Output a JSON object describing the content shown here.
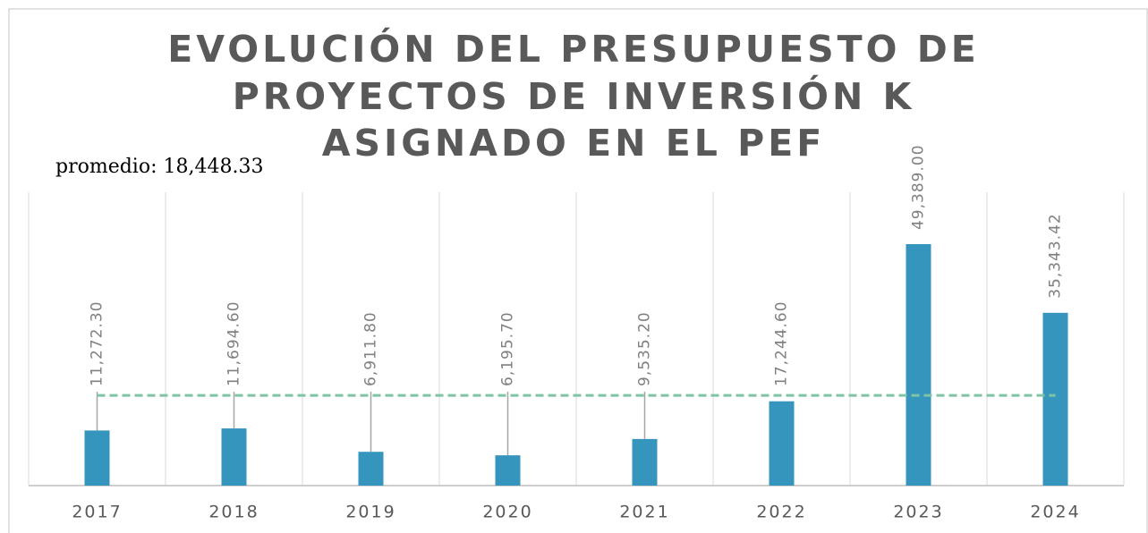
{
  "chart_data": {
    "type": "bar",
    "title": [
      "EVOLUCIÓN DEL PRESUPUESTO DE",
      "PROYECTOS DE INVERSIÓN K",
      "ASIGNADO EN EL PEF"
    ],
    "categories": [
      "2017",
      "2018",
      "2019",
      "2020",
      "2021",
      "2022",
      "2023",
      "2024"
    ],
    "values": [
      11272.3,
      11694.6,
      6911.8,
      6195.7,
      9535.2,
      17244.6,
      49389,
      35343.42
    ],
    "value_labels": [
      "11,272.30",
      "11,694.60",
      "6,911.80",
      "6,195.70",
      "9,535.20",
      "17,244.60",
      "49,389.00",
      "35,343.42"
    ],
    "color": "#3595bd",
    "ylim": [
      0,
      60000
    ],
    "average": {
      "value": 18448.33,
      "label": "promedio: 18,448.33",
      "color": "#7ec4a5"
    },
    "grid": true
  }
}
